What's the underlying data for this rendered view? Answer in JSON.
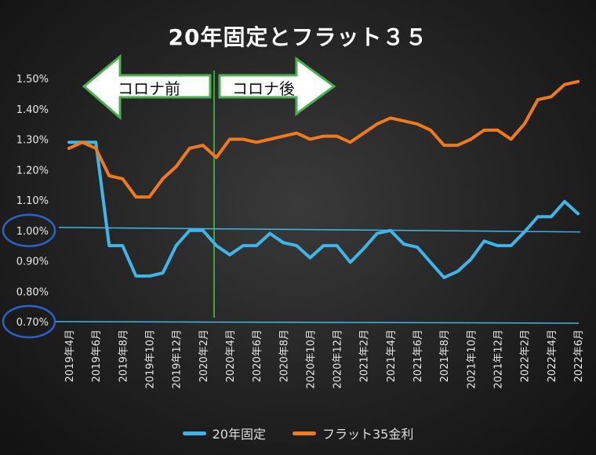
{
  "chart_data": {
    "type": "line",
    "title": "20年固定とフラット３５",
    "xlabel": "",
    "ylabel": "",
    "ylim": [
      0.7,
      1.5
    ],
    "yticks": [
      "0.70%",
      "0.80%",
      "0.90%",
      "1.00%",
      "1.10%",
      "1.20%",
      "1.30%",
      "1.40%",
      "1.50%"
    ],
    "x_tick_labels": [
      "2019年4月",
      "2019年6月",
      "2019年8月",
      "2019年10月",
      "2019年12月",
      "2020年2月",
      "2020年4月",
      "2020年6月",
      "2020年8月",
      "2020年10月",
      "2020年12月",
      "2021年2月",
      "2021年4月",
      "2021年6月",
      "2021年8月",
      "2021年10月",
      "2021年12月",
      "2022年2月",
      "2022年4月",
      "2022年6月"
    ],
    "series": [
      {
        "name": "20年固定",
        "color": "#3fb6ea",
        "values": [
          1.29,
          1.29,
          1.29,
          0.95,
          0.95,
          0.85,
          0.85,
          0.86,
          0.95,
          1.0,
          1.0,
          0.95,
          0.92,
          0.95,
          0.95,
          0.99,
          0.96,
          0.95,
          0.91,
          0.95,
          0.95,
          0.895,
          0.94,
          0.99,
          1.0,
          0.955,
          0.945,
          0.895,
          0.845,
          0.865,
          0.905,
          0.965,
          0.95,
          0.95,
          0.995,
          1.045,
          1.045,
          1.095,
          1.055
        ]
      },
      {
        "name": "フラット35金利",
        "color": "#f07b1c",
        "values": [
          1.27,
          1.29,
          1.27,
          1.18,
          1.17,
          1.11,
          1.11,
          1.17,
          1.21,
          1.27,
          1.28,
          1.24,
          1.3,
          1.3,
          1.29,
          1.3,
          1.31,
          1.32,
          1.3,
          1.31,
          1.31,
          1.29,
          1.32,
          1.35,
          1.37,
          1.36,
          1.35,
          1.33,
          1.28,
          1.28,
          1.3,
          1.33,
          1.33,
          1.3,
          1.35,
          1.43,
          1.44,
          1.48,
          1.49
        ]
      }
    ],
    "reference_lines": [
      1.01,
      0.7
    ],
    "annotations": {
      "before": "コロナ前",
      "after": "コロナ後"
    },
    "grid": false,
    "legend": "bottom"
  },
  "colors": {
    "divider_line": "#3cd23c",
    "reference_line": "#3fb6ea",
    "highlight_circle": "#2a63c8",
    "arrow_border": "#4caf50"
  }
}
